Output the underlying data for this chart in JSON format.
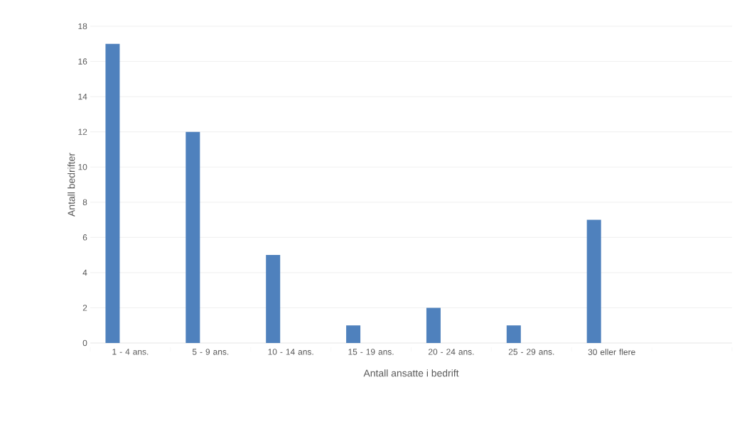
{
  "chart_data": {
    "type": "bar",
    "xlabel": "Antall ansatte i bedrift",
    "ylabel": "Antall bedrifter",
    "categories": [
      "1 - 4 ans.",
      "5 - 9 ans.",
      "10 - 14 ans.",
      "15 - 19 ans.",
      "20 - 24 ans.",
      "25 - 29 ans.",
      "30 eller flere",
      null
    ],
    "values": [
      17,
      12,
      5,
      1,
      2,
      1,
      7,
      null
    ],
    "color": "#4f81bd",
    "ylim": [
      0,
      18
    ],
    "yticks": [
      0,
      2,
      4,
      6,
      8,
      10,
      12,
      14,
      16,
      18
    ],
    "grid": "y"
  }
}
